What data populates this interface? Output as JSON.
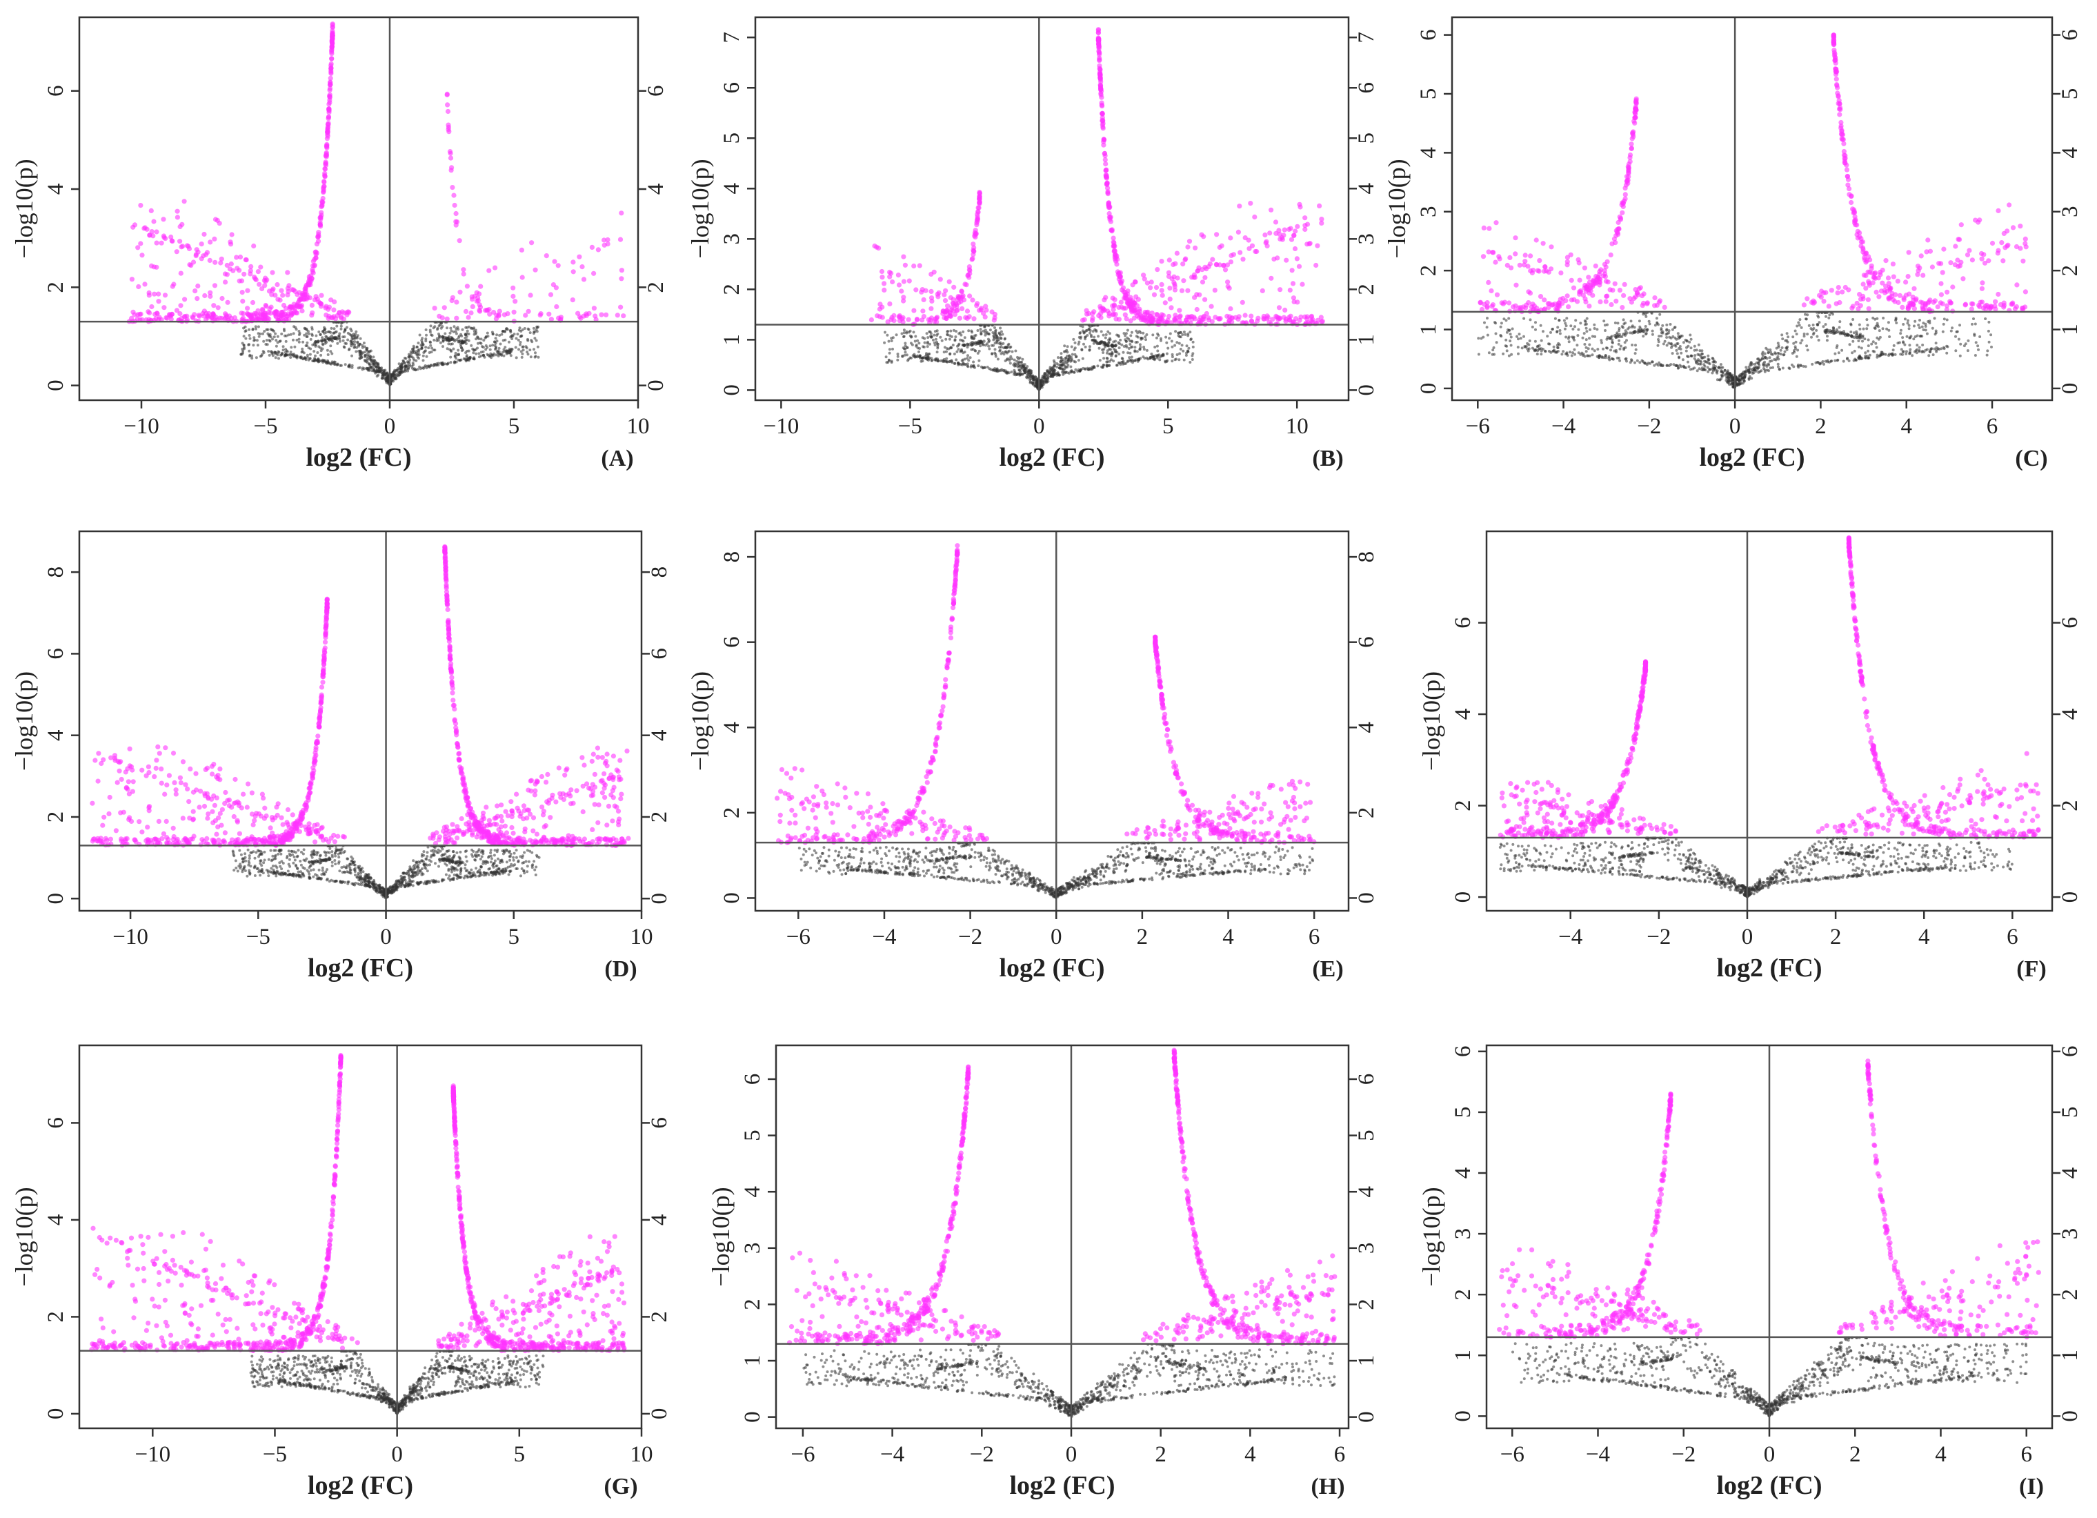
{
  "figure": {
    "x_axis_label": "log2 (FC)",
    "y_axis_label": "−log10(p)",
    "significance_color": "#ff33ff",
    "nonsignificant_color": "#333333"
  },
  "chart_data": [
    {
      "panel": "(A)",
      "type": "scatter",
      "xlabel": "log2 (FC)",
      "ylabel": "−log10(p)",
      "xlim": [
        -12.5,
        10
      ],
      "ylim": [
        -0.3,
        7.5
      ],
      "xticks": [
        -10,
        -5,
        0,
        5,
        10
      ],
      "yticks": [
        0,
        2,
        4,
        6
      ],
      "right_axis": true,
      "threshold_y": 1.3,
      "center_x": 0,
      "fc_threshold": 2.3,
      "left_peak": 7.3,
      "right_peak": 6.0,
      "left_spread": 10.5,
      "right_spread": 9.5,
      "left_density": 1.0,
      "right_density": 0.18,
      "seed": 11,
      "annotation": "highly imbalanced: strong down-regulated cluster, few up-regulated"
    },
    {
      "panel": "(B)",
      "type": "scatter",
      "xlabel": "log2 (FC)",
      "ylabel": "−log10(p)",
      "xlim": [
        -11,
        12
      ],
      "ylim": [
        -0.2,
        7.4
      ],
      "xticks": [
        -10,
        -5,
        0,
        5,
        10
      ],
      "yticks": [
        0,
        1,
        2,
        3,
        4,
        5,
        6,
        7
      ],
      "right_axis": true,
      "threshold_y": 1.3,
      "center_x": 0,
      "fc_threshold": 2.3,
      "left_peak": 3.9,
      "right_peak": 7.1,
      "left_spread": 6.5,
      "right_spread": 11,
      "left_density": 0.3,
      "right_density": 1.0,
      "seed": 23
    },
    {
      "panel": "(C)",
      "type": "scatter",
      "xlabel": "log2 (FC)",
      "ylabel": "−log10(p)",
      "xlim": [
        -6.6,
        7.4
      ],
      "ylim": [
        -0.2,
        6.3
      ],
      "xticks": [
        -6,
        -4,
        -2,
        0,
        2,
        4,
        6
      ],
      "yticks": [
        0,
        1,
        2,
        3,
        4,
        5,
        6
      ],
      "right_axis": true,
      "threshold_y": 1.3,
      "center_x": 0,
      "fc_threshold": 2.3,
      "left_peak": 4.9,
      "right_peak": 6.0,
      "left_spread": 6.0,
      "right_spread": 6.8,
      "left_density": 0.45,
      "right_density": 0.55,
      "seed": 37
    },
    {
      "panel": "(D)",
      "type": "scatter",
      "xlabel": "log2 (FC)",
      "ylabel": "−log10(p)",
      "xlim": [
        -12,
        10
      ],
      "ylim": [
        -0.3,
        9
      ],
      "xticks": [
        -10,
        -5,
        0,
        5,
        10
      ],
      "yticks": [
        0,
        2,
        4,
        6,
        8
      ],
      "right_axis": true,
      "threshold_y": 1.3,
      "center_x": 0,
      "fc_threshold": 2.3,
      "left_peak": 7.3,
      "right_peak": 8.7,
      "left_spread": 11.5,
      "right_spread": 9.5,
      "left_density": 1.0,
      "right_density": 1.0,
      "seed": 41
    },
    {
      "panel": "(E)",
      "type": "scatter",
      "xlabel": "log2 (FC)",
      "ylabel": "−log10(p)",
      "xlim": [
        -7,
        6.8
      ],
      "ylim": [
        -0.3,
        8.6
      ],
      "xticks": [
        -6,
        -4,
        -2,
        0,
        2,
        4,
        6
      ],
      "yticks": [
        0,
        2,
        4,
        6,
        8
      ],
      "right_axis": true,
      "threshold_y": 1.3,
      "center_x": 0,
      "fc_threshold": 2.3,
      "left_peak": 8.2,
      "right_peak": 6.1,
      "left_spread": 6.5,
      "right_spread": 6.0,
      "left_density": 0.5,
      "right_density": 0.5,
      "seed": 53
    },
    {
      "panel": "(F)",
      "type": "scatter",
      "xlabel": "log2 (FC)",
      "ylabel": "−log10(p)",
      "xlim": [
        -5.9,
        6.9
      ],
      "ylim": [
        -0.3,
        8
      ],
      "xticks": [
        -4,
        -2,
        0,
        2,
        4,
        6
      ],
      "yticks": [
        0,
        2,
        4,
        6
      ],
      "right_axis": true,
      "threshold_y": 1.3,
      "center_x": 0,
      "fc_threshold": 2.3,
      "left_peak": 5.1,
      "right_peak": 7.8,
      "left_spread": 5.6,
      "right_spread": 6.6,
      "left_density": 0.6,
      "right_density": 0.6,
      "seed": 67
    },
    {
      "panel": "(G)",
      "type": "scatter",
      "xlabel": "log2 (FC)",
      "ylabel": "−log10(p)",
      "xlim": [
        -13,
        10
      ],
      "ylim": [
        -0.3,
        7.6
      ],
      "xticks": [
        -10,
        -5,
        0,
        5,
        10
      ],
      "yticks": [
        0,
        2,
        4,
        6
      ],
      "right_axis": true,
      "threshold_y": 1.3,
      "center_x": 0,
      "fc_threshold": 2.3,
      "left_peak": 7.4,
      "right_peak": 6.7,
      "left_spread": 12.5,
      "right_spread": 9.3,
      "left_density": 1.0,
      "right_density": 1.0,
      "seed": 71
    },
    {
      "panel": "(H)",
      "type": "scatter",
      "xlabel": "log2 (FC)",
      "ylabel": "−log10(p)",
      "xlim": [
        -6.6,
        6.2
      ],
      "ylim": [
        -0.2,
        6.6
      ],
      "xticks": [
        -6,
        -4,
        -2,
        0,
        2,
        4,
        6
      ],
      "yticks": [
        0,
        1,
        2,
        3,
        4,
        5,
        6
      ],
      "right_axis": true,
      "threshold_y": 1.3,
      "center_x": 0,
      "fc_threshold": 2.3,
      "left_peak": 6.2,
      "right_peak": 6.5,
      "left_spread": 6.3,
      "right_spread": 5.9,
      "left_density": 0.65,
      "right_density": 0.65,
      "seed": 83
    },
    {
      "panel": "(I)",
      "type": "scatter",
      "xlabel": "log2 (FC)",
      "ylabel": "−log10(p)",
      "xlim": [
        -6.6,
        6.6
      ],
      "ylim": [
        -0.2,
        6.1
      ],
      "xticks": [
        -6,
        -4,
        -2,
        0,
        2,
        4,
        6
      ],
      "yticks": [
        0,
        1,
        2,
        3,
        4,
        5,
        6
      ],
      "right_axis": true,
      "threshold_y": 1.3,
      "center_x": 0,
      "fc_threshold": 2.3,
      "left_peak": 5.3,
      "right_peak": 5.8,
      "left_spread": 6.3,
      "right_spread": 6.3,
      "left_density": 0.55,
      "right_density": 0.45,
      "seed": 97
    }
  ]
}
